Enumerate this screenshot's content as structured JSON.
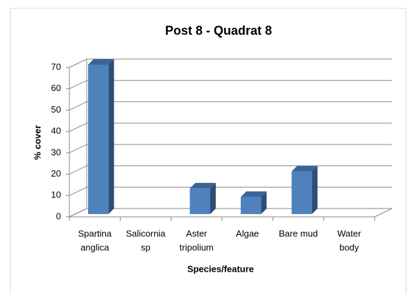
{
  "chart_data": {
    "type": "bar",
    "title": "Post 8 - Quadrat 8",
    "x_label": "Species/feature",
    "y_label": "% cover",
    "categories": [
      [
        "Spartina",
        "anglica"
      ],
      [
        "Salicornia",
        "sp"
      ],
      [
        "Aster",
        "tripolium"
      ],
      [
        "Algae"
      ],
      [
        "Bare mud"
      ],
      [
        "Water",
        "body"
      ]
    ],
    "values": [
      70,
      0,
      12,
      8,
      20,
      0
    ],
    "color": "#4f81bd",
    "ylim": [
      0,
      70
    ],
    "yticks": [
      0,
      10,
      20,
      30,
      40,
      50,
      60,
      70
    ],
    "grid": true
  }
}
